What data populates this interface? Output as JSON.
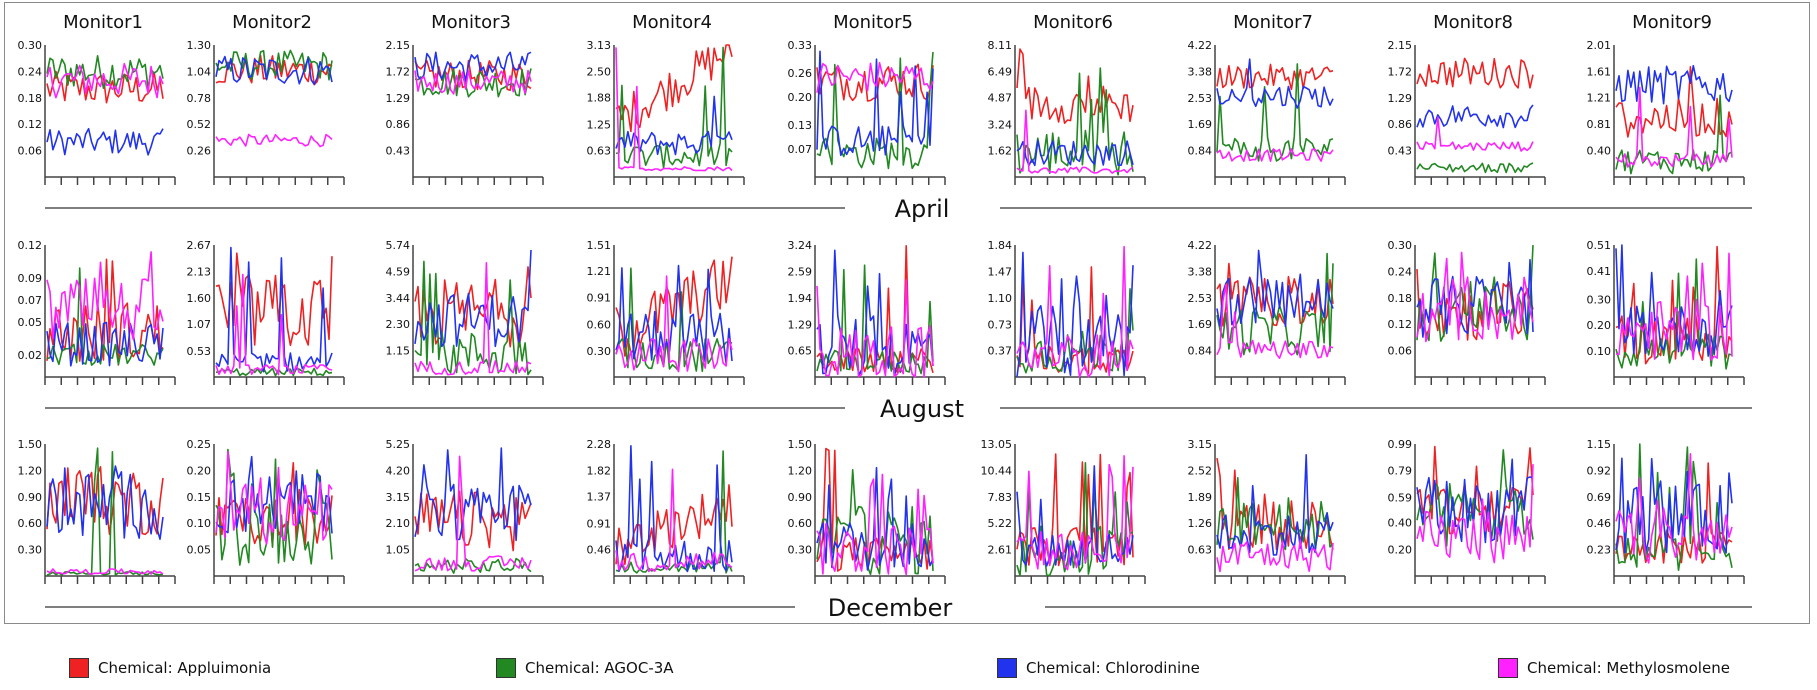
{
  "chart_data": {
    "type": "line",
    "title": "",
    "monitors": [
      "Monitor1",
      "Monitor2",
      "Monitor3",
      "Monitor4",
      "Monitor5",
      "Monitor6",
      "Monitor7",
      "Monitor8",
      "Monitor9"
    ],
    "months": [
      "April",
      "August",
      "December"
    ],
    "series": [
      {
        "name": "Chemical: Appluimonia",
        "color": "#ee2222"
      },
      {
        "name": "Chemical: AGOC-3A",
        "color": "#228822"
      },
      {
        "name": "Chemical: Chlorodinine",
        "color": "#2233ee"
      },
      {
        "name": "Chemical: Methylosmolene",
        "color": "#ff22ff"
      }
    ],
    "x_tick_count": 9,
    "y_ticks": [
      [
        [
          "0.30",
          "0.24",
          "0.18",
          "0.12",
          "0.06"
        ],
        [
          "1.30",
          "1.04",
          "0.78",
          "0.52",
          "0.26"
        ],
        [
          "2.15",
          "1.72",
          "1.29",
          "0.86",
          "0.43"
        ],
        [
          "3.13",
          "2.50",
          "1.88",
          "1.25",
          "0.63"
        ],
        [
          "0.33",
          "0.26",
          "0.20",
          "0.13",
          "0.07"
        ],
        [
          "8.11",
          "6.49",
          "4.87",
          "3.24",
          "1.62"
        ],
        [
          "4.22",
          "3.38",
          "2.53",
          "1.69",
          "0.84"
        ],
        [
          "2.15",
          "1.72",
          "1.29",
          "0.86",
          "0.43"
        ],
        [
          "2.01",
          "1.61",
          "1.21",
          "0.81",
          "0.40"
        ]
      ],
      [
        [
          "0.12",
          "0.09",
          "0.07",
          "0.05",
          "0.02"
        ],
        [
          "2.67",
          "2.13",
          "1.60",
          "1.07",
          "0.53"
        ],
        [
          "5.74",
          "4.59",
          "3.44",
          "2.30",
          "1.15"
        ],
        [
          "1.51",
          "1.21",
          "0.91",
          "0.60",
          "0.30"
        ],
        [
          "3.24",
          "2.59",
          "1.94",
          "1.29",
          "0.65"
        ],
        [
          "1.84",
          "1.47",
          "1.10",
          "0.73",
          "0.37"
        ],
        [
          "4.22",
          "3.38",
          "2.53",
          "1.69",
          "0.84"
        ],
        [
          "0.30",
          "0.24",
          "0.18",
          "0.12",
          "0.06"
        ],
        [
          "0.51",
          "0.41",
          "0.30",
          "0.20",
          "0.10"
        ]
      ],
      [
        [
          "1.50",
          "1.20",
          "0.90",
          "0.60",
          "0.30"
        ],
        [
          "0.25",
          "0.20",
          "0.15",
          "0.10",
          "0.05"
        ],
        [
          "5.25",
          "4.20",
          "3.15",
          "2.10",
          "1.05"
        ],
        [
          "2.28",
          "1.82",
          "1.37",
          "0.91",
          "0.46"
        ],
        [
          "1.50",
          "1.20",
          "0.90",
          "0.60",
          "0.30"
        ],
        [
          "13.05",
          "10.44",
          "7.83",
          "5.22",
          "2.61"
        ],
        [
          "3.15",
          "2.52",
          "1.89",
          "1.26",
          "0.63"
        ],
        [
          "0.99",
          "0.79",
          "0.59",
          "0.40",
          "0.20"
        ],
        [
          "1.15",
          "0.92",
          "0.69",
          "0.46",
          "0.23"
        ]
      ]
    ],
    "series_profiles": [
      [
        [
          [
            0.2,
            0.04,
            "mid"
          ],
          [
            0.24,
            0.04,
            "mid"
          ],
          [
            0.08,
            0.03,
            "mid"
          ],
          [
            0.22,
            0.04,
            "mid"
          ]
        ],
        [
          [
            1.05,
            0.15,
            "mid"
          ],
          [
            1.1,
            0.15,
            "mid"
          ],
          [
            1.05,
            0.15,
            "mid"
          ],
          [
            0.36,
            0.06,
            "mid"
          ]
        ],
        [
          [
            1.65,
            0.25,
            "mid"
          ],
          [
            1.55,
            0.25,
            "mid"
          ],
          [
            1.8,
            0.25,
            "mid"
          ],
          [
            1.55,
            0.2,
            "mid"
          ]
        ],
        [
          [
            2.2,
            0.5,
            "rise"
          ],
          [
            0.5,
            0.3,
            "spiky"
          ],
          [
            0.8,
            0.3,
            "spiky"
          ],
          [
            0.2,
            0.05,
            "low"
          ]
        ],
        [
          [
            0.24,
            0.05,
            "mid"
          ],
          [
            0.06,
            0.04,
            "spiky"
          ],
          [
            0.09,
            0.04,
            "spiky"
          ],
          [
            0.25,
            0.04,
            "mid"
          ]
        ],
        [
          [
            4.5,
            1.2,
            "spiky"
          ],
          [
            1.5,
            1.5,
            "spiky"
          ],
          [
            1.5,
            0.8,
            "low"
          ],
          [
            0.4,
            0.2,
            "low"
          ]
        ],
        [
          [
            3.2,
            0.4,
            "mid"
          ],
          [
            0.9,
            0.4,
            "spiky"
          ],
          [
            2.6,
            0.4,
            "spiky"
          ],
          [
            0.7,
            0.2,
            "low"
          ]
        ],
        [
          [
            1.7,
            0.25,
            "mid"
          ],
          [
            0.15,
            0.08,
            "low"
          ],
          [
            1.0,
            0.2,
            "mid"
          ],
          [
            0.5,
            0.08,
            "low"
          ]
        ],
        [
          [
            0.9,
            0.3,
            "spiky"
          ],
          [
            0.25,
            0.2,
            "spiky"
          ],
          [
            1.4,
            0.3,
            "mid"
          ],
          [
            0.25,
            0.1,
            "low"
          ]
        ]
      ],
      [
        [
          [
            0.04,
            0.03,
            "spiky"
          ],
          [
            0.02,
            0.01,
            "low"
          ],
          [
            0.03,
            0.02,
            "mid"
          ],
          [
            0.06,
            0.03,
            "spiky"
          ]
        ],
        [
          [
            1.3,
            0.8,
            "spiky"
          ],
          [
            0.1,
            0.08,
            "low"
          ],
          [
            0.3,
            0.2,
            "spiky"
          ],
          [
            0.15,
            0.1,
            "low"
          ]
        ],
        [
          [
            2.8,
            1.5,
            "spiky"
          ],
          [
            1.0,
            1.0,
            "spiky"
          ],
          [
            2.5,
            1.2,
            "spiky"
          ],
          [
            0.4,
            0.3,
            "low"
          ]
        ],
        [
          [
            0.8,
            0.35,
            "rise"
          ],
          [
            0.25,
            0.2,
            "spiky"
          ],
          [
            0.45,
            0.3,
            "spiky"
          ],
          [
            0.25,
            0.2,
            "spiky"
          ]
        ],
        [
          [
            0.4,
            0.3,
            "spiky"
          ],
          [
            0.35,
            0.3,
            "spiky"
          ],
          [
            0.7,
            0.8,
            "spiky"
          ],
          [
            0.5,
            0.8,
            "spiky"
          ]
        ],
        [
          [
            0.25,
            0.2,
            "spiky"
          ],
          [
            0.35,
            0.3,
            "spiky"
          ],
          [
            0.5,
            0.5,
            "spiky"
          ],
          [
            0.3,
            0.3,
            "spiky"
          ]
        ],
        [
          [
            2.4,
            0.8,
            "spiky"
          ],
          [
            1.5,
            0.8,
            "spiky"
          ],
          [
            2.4,
            0.8,
            "spiky"
          ],
          [
            0.9,
            0.3,
            "low"
          ]
        ],
        [
          [
            0.15,
            0.07,
            "spiky"
          ],
          [
            0.14,
            0.07,
            "spiky"
          ],
          [
            0.16,
            0.07,
            "spiky"
          ],
          [
            0.14,
            0.06,
            "spiky"
          ]
        ],
        [
          [
            0.15,
            0.1,
            "spiky"
          ],
          [
            0.1,
            0.07,
            "spiky"
          ],
          [
            0.18,
            0.1,
            "spiky"
          ],
          [
            0.18,
            0.12,
            "spiky"
          ]
        ]
      ],
      [
        [
          [
            0.85,
            0.4,
            "spiky"
          ],
          [
            0.03,
            0.02,
            "low"
          ],
          [
            0.8,
            0.4,
            "spiky"
          ],
          [
            0.05,
            0.03,
            "low"
          ]
        ],
        [
          [
            0.1,
            0.05,
            "spiky"
          ],
          [
            0.08,
            0.06,
            "spiky"
          ],
          [
            0.14,
            0.06,
            "spiky"
          ],
          [
            0.12,
            0.06,
            "spiky"
          ]
        ],
        [
          [
            2.2,
            1.2,
            "spiky"
          ],
          [
            0.4,
            0.3,
            "low"
          ],
          [
            2.6,
            1.2,
            "spiky"
          ],
          [
            0.5,
            0.3,
            "low"
          ]
        ],
        [
          [
            0.9,
            0.4,
            "rise"
          ],
          [
            0.15,
            0.1,
            "low"
          ],
          [
            0.35,
            0.3,
            "spiky"
          ],
          [
            0.25,
            0.2,
            "spiky"
          ]
        ],
        [
          [
            0.25,
            0.2,
            "spiky"
          ],
          [
            0.4,
            0.4,
            "spiky"
          ],
          [
            0.35,
            0.3,
            "spiky"
          ],
          [
            0.3,
            0.3,
            "spiky"
          ]
        ],
        [
          [
            3.0,
            2.0,
            "spiky"
          ],
          [
            2.5,
            3.0,
            "spiky"
          ],
          [
            2.5,
            2.0,
            "spiky"
          ],
          [
            2.5,
            2.0,
            "spiky"
          ]
        ],
        [
          [
            1.2,
            0.6,
            "spiky"
          ],
          [
            1.2,
            0.6,
            "spiky"
          ],
          [
            1.0,
            0.5,
            "spiky"
          ],
          [
            0.5,
            0.4,
            "spiky"
          ]
        ],
        [
          [
            0.5,
            0.25,
            "spiky"
          ],
          [
            0.45,
            0.25,
            "spiky"
          ],
          [
            0.5,
            0.25,
            "spiky"
          ],
          [
            0.3,
            0.2,
            "spiky"
          ]
        ],
        [
          [
            0.25,
            0.15,
            "spiky"
          ],
          [
            0.2,
            0.15,
            "spiky"
          ],
          [
            0.5,
            0.3,
            "spiky"
          ],
          [
            0.35,
            0.25,
            "spiky"
          ]
        ]
      ]
    ],
    "points_per_series": 40,
    "grid": false,
    "legend_position": "bottom"
  }
}
